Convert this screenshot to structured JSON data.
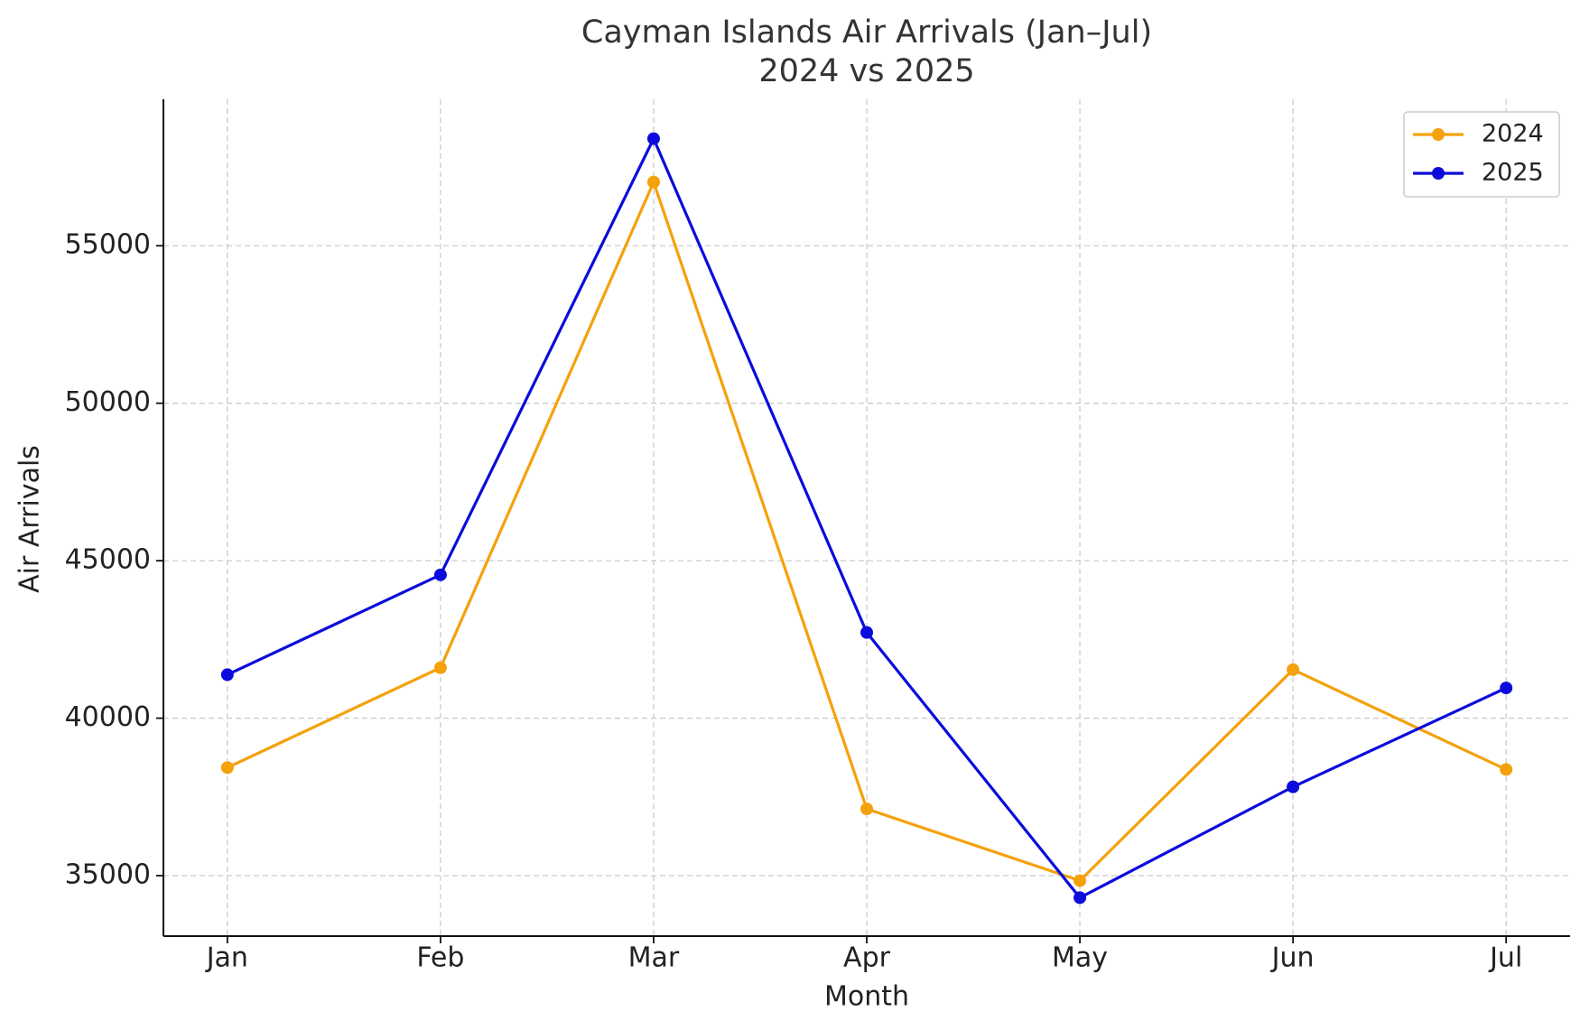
{
  "chart_data": {
    "type": "line",
    "title": "Cayman Islands Air Arrivals (Jan–Jul)",
    "subtitle": "2024 vs 2025",
    "x_label": "Month",
    "y_label": "Air Arrivals",
    "categories": [
      "Jan",
      "Feb",
      "Mar",
      "Apr",
      "May",
      "Jun",
      "Jul"
    ],
    "series": [
      {
        "name": "2024",
        "color": "#f5a10c",
        "values": [
          38430,
          41600,
          57020,
          37120,
          34840,
          41540,
          38370
        ]
      },
      {
        "name": "2025",
        "color": "#0b0bdc",
        "values": [
          41380,
          44550,
          58400,
          42720,
          34300,
          37820,
          40960
        ]
      }
    ],
    "ylim": [
      33080,
      59650
    ],
    "yticks": [
      35000,
      40000,
      45000,
      50000,
      55000
    ],
    "grid": true,
    "legend": "upper right"
  }
}
